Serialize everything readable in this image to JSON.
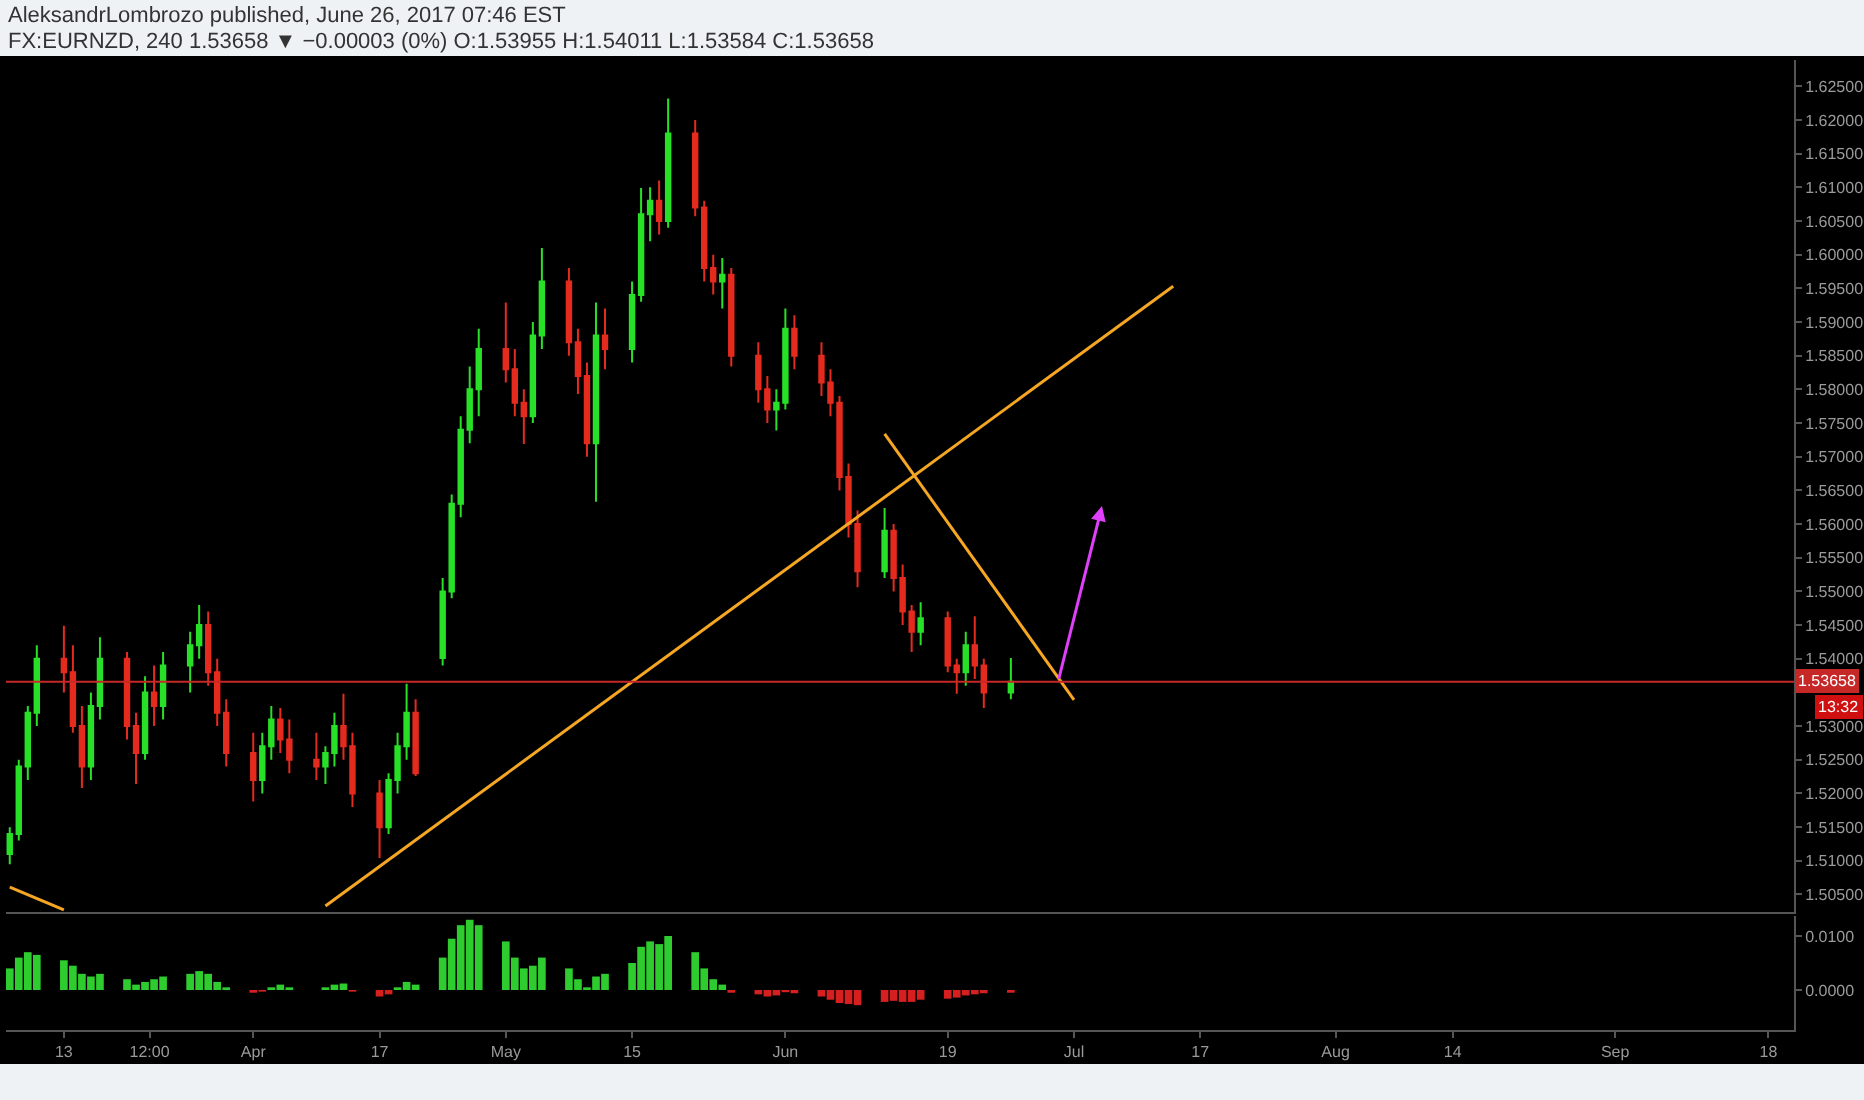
{
  "chart_data": [
    {
      "type": "candlestick",
      "title": "FX:EURNZD, 240 1.53658 ▼ −0.00003 (0%) O:1.53955 H:1.54011 L:1.53584 C:1.53658",
      "subtitle": "AleksandrLombrozo published, June 26, 2017 07:46 EST",
      "x": [
        "2017-03-07",
        "2017-03-08",
        "2017-03-09",
        "2017-03-10",
        "2017-03-13",
        "2017-03-14",
        "2017-03-15",
        "2017-03-16",
        "2017-03-17",
        "2017-03-20",
        "2017-03-21",
        "2017-03-22",
        "2017-03-23",
        "2017-03-24",
        "2017-03-27",
        "2017-03-28",
        "2017-03-29",
        "2017-03-30",
        "2017-03-31",
        "2017-04-03",
        "2017-04-04",
        "2017-04-05",
        "2017-04-06",
        "2017-04-07",
        "2017-04-10",
        "2017-04-11",
        "2017-04-12",
        "2017-04-13",
        "2017-04-14",
        "2017-04-17",
        "2017-04-18",
        "2017-04-19",
        "2017-04-20",
        "2017-04-21",
        "2017-04-24",
        "2017-04-25",
        "2017-04-26",
        "2017-04-27",
        "2017-04-28",
        "2017-05-01",
        "2017-05-02",
        "2017-05-03",
        "2017-05-04",
        "2017-05-05",
        "2017-05-08",
        "2017-05-09",
        "2017-05-10",
        "2017-05-11",
        "2017-05-12",
        "2017-05-15",
        "2017-05-16",
        "2017-05-17",
        "2017-05-18",
        "2017-05-19",
        "2017-05-22",
        "2017-05-23",
        "2017-05-24",
        "2017-05-25",
        "2017-05-26",
        "2017-05-29",
        "2017-05-30",
        "2017-05-31",
        "2017-06-01",
        "2017-06-02",
        "2017-06-05",
        "2017-06-06",
        "2017-06-07",
        "2017-06-08",
        "2017-06-09",
        "2017-06-12",
        "2017-06-13",
        "2017-06-14",
        "2017-06-15",
        "2017-06-16",
        "2017-06-19",
        "2017-06-20",
        "2017-06-21",
        "2017-06-22",
        "2017-06-23",
        "2017-06-26"
      ],
      "ohlc": [
        [
          1.511,
          1.515,
          1.5095,
          1.514
        ],
        [
          1.514,
          1.525,
          1.513,
          1.524
        ],
        [
          1.524,
          1.533,
          1.522,
          1.532
        ],
        [
          1.532,
          1.542,
          1.53,
          1.54
        ],
        [
          1.54,
          1.5449,
          1.535,
          1.538
        ],
        [
          1.538,
          1.542,
          1.529,
          1.53
        ],
        [
          1.53,
          1.533,
          1.5208,
          1.524
        ],
        [
          1.524,
          1.535,
          1.522,
          1.533
        ],
        [
          1.533,
          1.5432,
          1.531,
          1.54
        ],
        [
          1.54,
          1.541,
          1.528,
          1.53
        ],
        [
          1.53,
          1.532,
          1.5214,
          1.526
        ],
        [
          1.526,
          1.5374,
          1.525,
          1.535
        ],
        [
          1.535,
          1.539,
          1.53,
          1.533
        ],
        [
          1.533,
          1.541,
          1.531,
          1.539
        ],
        [
          1.539,
          1.544,
          1.535,
          1.542
        ],
        [
          1.542,
          1.548,
          1.54,
          1.545
        ],
        [
          1.545,
          1.547,
          1.536,
          1.538
        ],
        [
          1.538,
          1.54,
          1.53,
          1.532
        ],
        [
          1.532,
          1.534,
          1.524,
          1.526
        ],
        [
          1.526,
          1.529,
          1.5188,
          1.522
        ],
        [
          1.522,
          1.529,
          1.52,
          1.527
        ],
        [
          1.527,
          1.533,
          1.525,
          1.531
        ],
        [
          1.531,
          1.5327,
          1.526,
          1.528
        ],
        [
          1.528,
          1.531,
          1.523,
          1.525
        ],
        [
          1.525,
          1.529,
          1.522,
          1.524
        ],
        [
          1.524,
          1.527,
          1.5214,
          1.526
        ],
        [
          1.526,
          1.532,
          1.524,
          1.53
        ],
        [
          1.53,
          1.5348,
          1.525,
          1.527
        ],
        [
          1.527,
          1.529,
          1.518,
          1.52
        ],
        [
          1.52,
          1.522,
          1.5104,
          1.515
        ],
        [
          1.515,
          1.523,
          1.514,
          1.522
        ],
        [
          1.522,
          1.529,
          1.52,
          1.527
        ],
        [
          1.527,
          1.5363,
          1.525,
          1.532
        ],
        [
          1.532,
          1.534,
          1.5226,
          1.523
        ],
        [
          1.5401,
          1.552,
          1.539,
          1.55
        ],
        [
          1.55,
          1.5644,
          1.549,
          1.563
        ],
        [
          1.563,
          1.576,
          1.561,
          1.574
        ],
        [
          1.574,
          1.5834,
          1.572,
          1.58
        ],
        [
          1.58,
          1.589,
          1.576,
          1.586
        ],
        [
          1.586,
          1.5929,
          1.581,
          1.583
        ],
        [
          1.583,
          1.586,
          1.576,
          1.578
        ],
        [
          1.578,
          1.58,
          1.5719,
          1.576
        ],
        [
          1.576,
          1.59,
          1.575,
          1.588
        ],
        [
          1.588,
          1.601,
          1.586,
          1.596
        ],
        [
          1.596,
          1.598,
          1.585,
          1.587
        ],
        [
          1.587,
          1.589,
          1.5793,
          1.582
        ],
        [
          1.582,
          1.584,
          1.57,
          1.572
        ],
        [
          1.572,
          1.5929,
          1.5633,
          1.588
        ],
        [
          1.588,
          1.592,
          1.583,
          1.586
        ],
        [
          1.586,
          1.596,
          1.584,
          1.594
        ],
        [
          1.594,
          1.6099,
          1.593,
          1.606
        ],
        [
          1.606,
          1.61,
          1.602,
          1.608
        ],
        [
          1.608,
          1.611,
          1.603,
          1.605
        ],
        [
          1.605,
          1.6232,
          1.604,
          1.618
        ],
        [
          1.618,
          1.62,
          1.6057,
          1.607
        ],
        [
          1.607,
          1.608,
          1.596,
          1.598
        ],
        [
          1.598,
          1.6,
          1.5941,
          1.596
        ],
        [
          1.596,
          1.5995,
          1.592,
          1.597
        ],
        [
          1.597,
          1.598,
          1.5834,
          1.585
        ],
        [
          1.585,
          1.587,
          1.578,
          1.58
        ],
        [
          1.58,
          1.582,
          1.575,
          1.577
        ],
        [
          1.577,
          1.58,
          1.5739,
          1.578
        ],
        [
          1.578,
          1.592,
          1.577,
          1.589
        ],
        [
          1.589,
          1.591,
          1.583,
          1.585
        ],
        [
          1.585,
          1.587,
          1.579,
          1.581
        ],
        [
          1.581,
          1.583,
          1.576,
          1.578
        ],
        [
          1.578,
          1.579,
          1.565,
          1.567
        ],
        [
          1.567,
          1.569,
          1.558,
          1.56
        ],
        [
          1.56,
          1.562,
          1.5506,
          1.553
        ],
        [
          1.553,
          1.5624,
          1.552,
          1.559
        ],
        [
          1.559,
          1.56,
          1.55,
          1.552
        ],
        [
          1.552,
          1.554,
          1.545,
          1.547
        ],
        [
          1.547,
          1.548,
          1.541,
          1.544
        ],
        [
          1.544,
          1.5484,
          1.542,
          1.546
        ],
        [
          1.546,
          1.547,
          1.538,
          1.539
        ],
        [
          1.539,
          1.54,
          1.5348,
          1.538
        ],
        [
          1.538,
          1.544,
          1.536,
          1.542
        ],
        [
          1.542,
          1.5463,
          1.537,
          1.539
        ],
        [
          1.539,
          1.54,
          1.5327,
          1.535
        ],
        [
          1.535,
          1.5401,
          1.534,
          1.5366
        ]
      ],
      "series": [
        {
          "type": "line",
          "color": "#f5a623",
          "x": [
            "2017-04-11",
            "2017-07-14"
          ],
          "values": [
            1.5033,
            1.5953
          ]
        },
        {
          "type": "line",
          "color": "#f5a623",
          "x": [
            "2017-03-07",
            "2017-03-13"
          ],
          "values": [
            1.5061,
            1.5027
          ]
        },
        {
          "type": "line",
          "color": "#f5a623",
          "x": [
            "2017-06-12",
            "2017-07-03"
          ],
          "values": [
            1.5734,
            1.5339
          ]
        }
      ],
      "xlim": [
        "2017-03-06T14:00",
        "2017-09-20T20:00"
      ],
      "ylim": [
        1.5024,
        1.6289
      ],
      "yticks": [
        {
          "value": 1.505,
          "label": "1.50500"
        },
        {
          "value": 1.51,
          "label": "1.51000"
        },
        {
          "value": 1.515,
          "label": "1.51500"
        },
        {
          "value": 1.52,
          "label": "1.52000"
        },
        {
          "value": 1.525,
          "label": "1.52500"
        },
        {
          "value": 1.53,
          "label": "1.53000"
        },
        {
          "value": 1.54,
          "label": "1.54000"
        },
        {
          "value": 1.545,
          "label": "1.54500"
        },
        {
          "value": 1.55,
          "label": "1.55000"
        },
        {
          "value": 1.555,
          "label": "1.55500"
        },
        {
          "value": 1.56,
          "label": "1.56000"
        },
        {
          "value": 1.565,
          "label": "1.56500"
        },
        {
          "value": 1.57,
          "label": "1.57000"
        },
        {
          "value": 1.575,
          "label": "1.57500"
        },
        {
          "value": 1.58,
          "label": "1.58000"
        },
        {
          "value": 1.585,
          "label": "1.58500"
        },
        {
          "value": 1.59,
          "label": "1.59000"
        },
        {
          "value": 1.595,
          "label": "1.59500"
        },
        {
          "value": 1.6,
          "label": "1.60000"
        },
        {
          "value": 1.605,
          "label": "1.60500"
        },
        {
          "value": 1.61,
          "label": "1.61000"
        },
        {
          "value": 1.615,
          "label": "1.61500"
        },
        {
          "value": 1.62,
          "label": "1.62000"
        },
        {
          "value": 1.625,
          "label": "1.62500"
        }
      ],
      "tick_labels": "y",
      "ref_lines": [
        {
          "axis": "y",
          "value": 1.53658,
          "label": "1.53658",
          "color": "#c62828"
        }
      ],
      "annotations": [
        "13:32"
      ]
    },
    {
      "type": "bar",
      "x": [
        "2017-03-07",
        "2017-03-08",
        "2017-03-09",
        "2017-03-10",
        "2017-03-13",
        "2017-03-14",
        "2017-03-15",
        "2017-03-16",
        "2017-03-17",
        "2017-03-20",
        "2017-03-21",
        "2017-03-22",
        "2017-03-23",
        "2017-03-24",
        "2017-03-27",
        "2017-03-28",
        "2017-03-29",
        "2017-03-30",
        "2017-03-31",
        "2017-04-03",
        "2017-04-04",
        "2017-04-05",
        "2017-04-06",
        "2017-04-07",
        "2017-04-10",
        "2017-04-11",
        "2017-04-12",
        "2017-04-13",
        "2017-04-14",
        "2017-04-17",
        "2017-04-18",
        "2017-04-19",
        "2017-04-20",
        "2017-04-21",
        "2017-04-24",
        "2017-04-25",
        "2017-04-26",
        "2017-04-27",
        "2017-04-28",
        "2017-05-01",
        "2017-05-02",
        "2017-05-03",
        "2017-05-04",
        "2017-05-05",
        "2017-05-08",
        "2017-05-09",
        "2017-05-10",
        "2017-05-11",
        "2017-05-12",
        "2017-05-15",
        "2017-05-16",
        "2017-05-17",
        "2017-05-18",
        "2017-05-19",
        "2017-05-22",
        "2017-05-23",
        "2017-05-24",
        "2017-05-25",
        "2017-05-26",
        "2017-05-29",
        "2017-05-30",
        "2017-05-31",
        "2017-06-01",
        "2017-06-02",
        "2017-06-05",
        "2017-06-06",
        "2017-06-07",
        "2017-06-08",
        "2017-06-09",
        "2017-06-12",
        "2017-06-13",
        "2017-06-14",
        "2017-06-15",
        "2017-06-16",
        "2017-06-19",
        "2017-06-20",
        "2017-06-21",
        "2017-06-22",
        "2017-06-23",
        "2017-06-26"
      ],
      "series": [
        {
          "color": "#2ecc2e",
          "values": [
            0.004,
            0.006,
            0.007,
            0.0065,
            0.0055,
            0.0045,
            0.003,
            0.0025,
            0.003,
            0.002,
            0.001,
            0.0015,
            0.002,
            0.0025,
            0.003,
            0.0035,
            0.003,
            0.0015,
            0.0005,
            null,
            null,
            0.0005,
            0.001,
            0.0005,
            null,
            0.0005,
            0.001,
            0.0012,
            null,
            null,
            null,
            0.0005,
            0.0015,
            0.001,
            0.006,
            0.0095,
            0.012,
            0.013,
            0.012,
            0.009,
            0.006,
            0.004,
            0.0045,
            0.006,
            0.004,
            0.002,
            0.0005,
            0.0025,
            0.003,
            0.005,
            0.008,
            0.009,
            0.0085,
            0.01,
            0.007,
            0.004,
            0.002,
            0.001,
            null,
            null,
            null,
            null,
            null,
            null,
            null,
            null,
            null,
            null,
            null,
            null,
            null,
            null,
            null,
            null,
            null,
            null,
            null,
            null,
            null,
            null
          ]
        },
        {
          "color": "#d62020",
          "values": [
            null,
            null,
            null,
            null,
            null,
            null,
            null,
            null,
            null,
            null,
            null,
            null,
            null,
            null,
            null,
            null,
            null,
            null,
            null,
            -0.0005,
            -0.0003,
            null,
            null,
            null,
            null,
            null,
            null,
            null,
            -0.0003,
            -0.0012,
            -0.0008,
            null,
            null,
            null,
            null,
            null,
            null,
            null,
            null,
            null,
            null,
            null,
            null,
            null,
            null,
            null,
            null,
            null,
            null,
            null,
            null,
            null,
            null,
            null,
            null,
            null,
            null,
            null,
            -0.0005,
            -0.0008,
            -0.0012,
            -0.001,
            -0.0004,
            -0.0006,
            -0.0012,
            -0.0018,
            -0.0024,
            -0.0026,
            -0.0028,
            -0.0022,
            -0.002,
            -0.0022,
            -0.0022,
            -0.0018,
            -0.0016,
            -0.0014,
            -0.001,
            -0.0008,
            -0.0006,
            -0.0005
          ]
        }
      ],
      "xlim": [
        "2017-03-06T14:00",
        "2017-09-20T20:00"
      ],
      "xticks": [
        {
          "value": "2017-03-13",
          "label": "13"
        },
        {
          "value": "2017-03-22T12:00",
          "label": "12:00"
        },
        {
          "value": "2017-04-03",
          "label": "Apr"
        },
        {
          "value": "2017-04-17",
          "label": "17"
        },
        {
          "value": "2017-05-01",
          "label": "May"
        },
        {
          "value": "2017-05-15",
          "label": "15"
        },
        {
          "value": "2017-06-01",
          "label": "Jun"
        },
        {
          "value": "2017-06-19",
          "label": "19"
        },
        {
          "value": "2017-07-03",
          "label": "Jul"
        },
        {
          "value": "2017-07-17",
          "label": "17"
        },
        {
          "value": "2017-08-01",
          "label": "Aug"
        },
        {
          "value": "2017-08-14",
          "label": "14"
        },
        {
          "value": "2017-09-01",
          "label": "Sep"
        },
        {
          "value": "2017-09-18",
          "label": "18"
        }
      ],
      "ylim": [
        -0.0074,
        0.0137
      ],
      "yticks": [
        {
          "value": 0.01,
          "label": "0.0100"
        },
        {
          "value": 0,
          "label": "0.0000"
        }
      ]
    }
  ]
}
